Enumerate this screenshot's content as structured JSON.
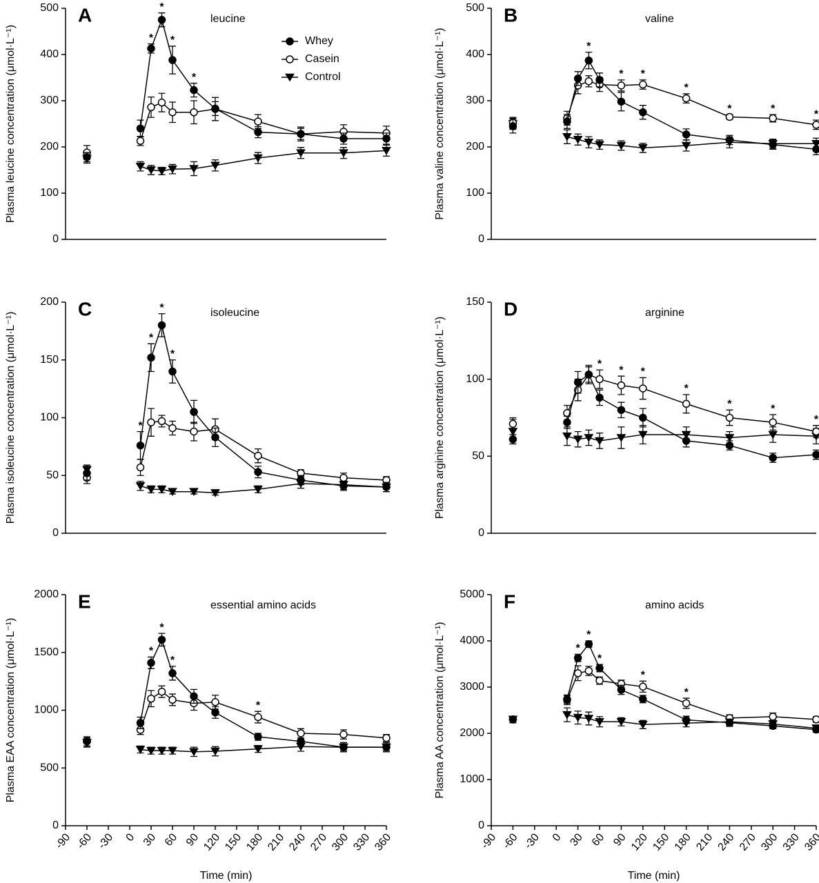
{
  "chart_data": [
    {
      "type": "line",
      "label": "A",
      "title": "leucine",
      "ylabel": "Plasma leucine concentration (μmol·L⁻¹)",
      "x": [
        -60,
        15,
        30,
        45,
        60,
        90,
        120,
        180,
        240,
        300,
        360
      ],
      "xlim": [
        -90,
        360
      ],
      "ylim": [
        0,
        500
      ],
      "yticks": [
        0,
        100,
        200,
        300,
        400,
        500
      ],
      "connect_baseline": false,
      "legend": "upper right",
      "series": [
        {
          "name": "Whey",
          "marker": "filled-circle",
          "color": "#000000",
          "values": [
            178,
            240,
            413,
            475,
            388,
            323,
            283,
            232,
            228,
            218,
            218
          ],
          "errors": [
            10,
            18,
            10,
            15,
            30,
            15,
            15,
            12,
            12,
            12,
            12
          ]
        },
        {
          "name": "Casein",
          "marker": "open-circle",
          "color": "#000000",
          "values": [
            188,
            213,
            286,
            296,
            275,
            275,
            282,
            255,
            228,
            233,
            230
          ],
          "errors": [
            15,
            10,
            22,
            20,
            22,
            25,
            25,
            15,
            15,
            15,
            15
          ]
        },
        {
          "name": "Control",
          "marker": "triangle-down",
          "color": "#000000",
          "values": [
            175,
            158,
            150,
            148,
            152,
            153,
            160,
            176,
            187,
            187,
            192
          ],
          "errors": [
            10,
            10,
            10,
            8,
            10,
            15,
            12,
            12,
            12,
            12,
            12
          ]
        }
      ],
      "annotations": [
        {
          "x": 30,
          "text": "*"
        },
        {
          "x": 45,
          "text": "*"
        },
        {
          "x": 60,
          "text": "*"
        },
        {
          "x": 90,
          "text": "*"
        }
      ]
    },
    {
      "type": "line",
      "label": "B",
      "title": "valine",
      "ylabel": "Plasma valine concentration (μmol·L⁻¹)",
      "x": [
        -60,
        15,
        30,
        45,
        60,
        90,
        120,
        180,
        240,
        300,
        360
      ],
      "xlim": [
        -90,
        360
      ],
      "ylim": [
        0,
        500
      ],
      "yticks": [
        0,
        100,
        200,
        300,
        400,
        500
      ],
      "connect_baseline": false,
      "series": [
        {
          "marker": "filled-circle",
          "color": "#000000",
          "values": [
            245,
            255,
            348,
            387,
            345,
            298,
            275,
            227,
            215,
            205,
            195
          ],
          "errors": [
            15,
            15,
            15,
            18,
            15,
            20,
            15,
            12,
            10,
            10,
            12
          ]
        },
        {
          "marker": "open-circle",
          "color": "#000000",
          "values": [
            252,
            262,
            333,
            342,
            335,
            333,
            335,
            305,
            265,
            262,
            248
          ],
          "errors": [
            12,
            15,
            18,
            12,
            15,
            12,
            10,
            10,
            5,
            8,
            10
          ]
        },
        {
          "marker": "triangle-down",
          "color": "#000000",
          "values": [
            250,
            222,
            216,
            210,
            205,
            203,
            198,
            203,
            210,
            207,
            207
          ],
          "errors": [
            12,
            15,
            12,
            12,
            10,
            10,
            10,
            12,
            12,
            10,
            12
          ]
        }
      ],
      "annotations": [
        {
          "x": 45,
          "text": "*"
        },
        {
          "x": 90,
          "text": "*"
        },
        {
          "x": 120,
          "text": "*"
        },
        {
          "x": 180,
          "text": "*"
        },
        {
          "x": 240,
          "text": "*"
        },
        {
          "x": 300,
          "text": "*"
        },
        {
          "x": 360,
          "text": "*"
        }
      ]
    },
    {
      "type": "line",
      "label": "C",
      "title": "isoleucine",
      "ylabel": "Plasma isoleucine concentration (μmol·L⁻¹)",
      "x": [
        -60,
        15,
        30,
        45,
        60,
        90,
        120,
        180,
        240,
        300,
        360
      ],
      "xlim": [
        -90,
        360
      ],
      "ylim": [
        0,
        200
      ],
      "yticks": [
        0,
        50,
        100,
        150,
        200
      ],
      "connect_baseline": false,
      "series": [
        {
          "marker": "filled-circle",
          "color": "#000000",
          "values": [
            52,
            76,
            152,
            180,
            140,
            105,
            83,
            53,
            46,
            41,
            40
          ],
          "errors": [
            6,
            12,
            12,
            10,
            10,
            10,
            8,
            5,
            4,
            4,
            4
          ]
        },
        {
          "marker": "open-circle",
          "color": "#000000",
          "values": [
            48,
            57,
            96,
            97,
            91,
            88,
            90,
            67,
            52,
            48,
            46
          ],
          "errors": [
            5,
            7,
            12,
            5,
            6,
            8,
            9,
            6,
            3,
            4,
            3
          ]
        },
        {
          "marker": "triangle-down",
          "color": "#000000",
          "values": [
            55,
            41,
            38,
            38,
            36,
            36,
            35,
            38,
            43,
            42,
            40
          ],
          "errors": [
            4,
            4,
            3,
            3,
            2,
            2,
            2,
            3,
            4,
            4,
            4
          ]
        }
      ],
      "annotations": [
        {
          "x": 15,
          "text": "*"
        },
        {
          "x": 30,
          "text": "*"
        },
        {
          "x": 45,
          "text": "*"
        },
        {
          "x": 60,
          "text": "*"
        }
      ]
    },
    {
      "type": "line",
      "label": "D",
      "title": "arginine",
      "ylabel": "Plasma arginine concentration (μmol·L⁻¹)",
      "x": [
        -60,
        15,
        30,
        45,
        60,
        90,
        120,
        180,
        240,
        300,
        360
      ],
      "xlim": [
        -90,
        360
      ],
      "ylim": [
        0,
        150
      ],
      "yticks": [
        0,
        50,
        100,
        150
      ],
      "connect_baseline": false,
      "series": [
        {
          "marker": "filled-circle",
          "color": "#000000",
          "values": [
            61,
            72,
            98,
            103,
            88,
            80,
            75,
            60,
            57,
            49,
            51
          ],
          "errors": [
            3,
            4,
            7,
            5,
            5,
            5,
            6,
            4,
            3,
            3,
            3
          ]
        },
        {
          "marker": "open-circle",
          "color": "#000000",
          "values": [
            71,
            78,
            93,
            103,
            100,
            96,
            94,
            84,
            75,
            72,
            66
          ],
          "errors": [
            4,
            5,
            7,
            6,
            6,
            6,
            7,
            6,
            5,
            5,
            4
          ]
        },
        {
          "marker": "triangle-down",
          "color": "#000000",
          "values": [
            66,
            63,
            61,
            62,
            60,
            62,
            64,
            64,
            62,
            64,
            63
          ],
          "errors": [
            8,
            6,
            5,
            5,
            5,
            7,
            6,
            5,
            4,
            5,
            5
          ]
        }
      ],
      "annotations": [
        {
          "x": 60,
          "text": "*"
        },
        {
          "x": 90,
          "text": "*"
        },
        {
          "x": 120,
          "text": "*"
        },
        {
          "x": 180,
          "text": "*"
        },
        {
          "x": 240,
          "text": "*"
        },
        {
          "x": 300,
          "text": "*"
        },
        {
          "x": 360,
          "text": "*"
        }
      ]
    },
    {
      "type": "line",
      "label": "E",
      "title": "essential amino acids",
      "ylabel": "Plasma EAA concentration (μmol·L⁻¹)",
      "xlabel": "Time (min)",
      "x": [
        -60,
        15,
        30,
        45,
        60,
        90,
        120,
        180,
        240,
        300,
        360
      ],
      "xlim": [
        -90,
        360
      ],
      "xticks": [
        -90,
        -60,
        -30,
        0,
        30,
        60,
        90,
        120,
        150,
        180,
        210,
        240,
        270,
        300,
        330,
        360
      ],
      "ylim": [
        0,
        2000
      ],
      "yticks": [
        0,
        500,
        1000,
        1500,
        2000
      ],
      "connect_baseline": false,
      "series": [
        {
          "marker": "filled-circle",
          "color": "#000000",
          "values": [
            730,
            890,
            1410,
            1610,
            1320,
            1120,
            980,
            770,
            730,
            680,
            680
          ],
          "errors": [
            40,
            50,
            50,
            55,
            60,
            60,
            50,
            30,
            30,
            30,
            30
          ]
        },
        {
          "marker": "open-circle",
          "color": "#000000",
          "values": [
            730,
            830,
            1100,
            1160,
            1090,
            1060,
            1070,
            940,
            800,
            790,
            760
          ],
          "errors": [
            40,
            40,
            70,
            50,
            50,
            60,
            60,
            50,
            40,
            40,
            30
          ]
        },
        {
          "marker": "triangle-down",
          "color": "#000000",
          "values": [
            720,
            660,
            650,
            650,
            650,
            640,
            645,
            665,
            685,
            680,
            680
          ],
          "errors": [
            40,
            30,
            30,
            30,
            30,
            40,
            40,
            30,
            40,
            40,
            40
          ]
        }
      ],
      "annotations": [
        {
          "x": 30,
          "text": "*"
        },
        {
          "x": 45,
          "text": "*"
        },
        {
          "x": 60,
          "text": "*"
        },
        {
          "x": 180,
          "text": "*"
        }
      ]
    },
    {
      "type": "line",
      "label": "F",
      "title": "amino acids",
      "ylabel": "Plasma AA concentration (μmol·L⁻¹)",
      "xlabel": "Time (min)",
      "x": [
        -60,
        15,
        30,
        45,
        60,
        90,
        120,
        180,
        240,
        300,
        360
      ],
      "xlim": [
        -90,
        360
      ],
      "xticks": [
        -90,
        -60,
        -30,
        0,
        30,
        60,
        90,
        120,
        150,
        180,
        210,
        240,
        270,
        300,
        330,
        360
      ],
      "ylim": [
        0,
        5000
      ],
      "yticks": [
        0,
        1000,
        2000,
        3000,
        4000,
        5000
      ],
      "connect_baseline": false,
      "series": [
        {
          "marker": "filled-circle",
          "color": "#000000",
          "values": [
            2300,
            2740,
            3630,
            3930,
            3410,
            2940,
            2740,
            2290,
            2230,
            2160,
            2080
          ],
          "errors": [
            70,
            90,
            80,
            70,
            80,
            100,
            80,
            80,
            80,
            60,
            60
          ]
        },
        {
          "marker": "open-circle",
          "color": "#000000",
          "values": [
            2300,
            2720,
            3300,
            3350,
            3140,
            3070,
            3010,
            2650,
            2330,
            2360,
            2300
          ],
          "errors": [
            70,
            100,
            160,
            100,
            80,
            80,
            120,
            110,
            70,
            80,
            60
          ]
        },
        {
          "marker": "triangle-down",
          "color": "#000000",
          "values": [
            2300,
            2400,
            2340,
            2320,
            2250,
            2250,
            2190,
            2220,
            2250,
            2200,
            2110
          ],
          "errors": [
            70,
            150,
            140,
            140,
            110,
            90,
            90,
            80,
            80,
            80,
            70
          ]
        }
      ],
      "annotations": [
        {
          "x": 30,
          "text": "*"
        },
        {
          "x": 45,
          "text": "*"
        },
        {
          "x": 60,
          "text": "*"
        },
        {
          "x": 120,
          "text": "*"
        },
        {
          "x": 180,
          "text": "*"
        }
      ]
    }
  ]
}
